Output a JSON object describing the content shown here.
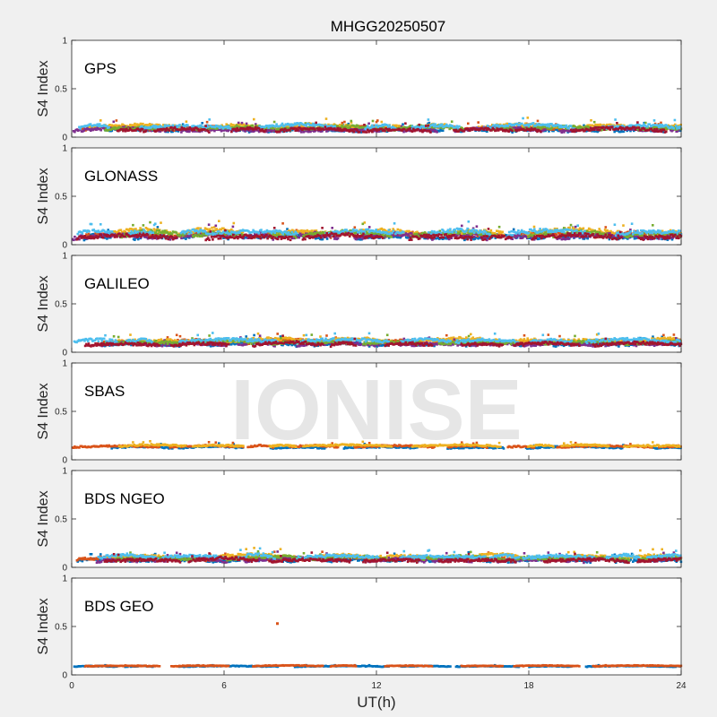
{
  "figure": {
    "title": "MHGG20250507",
    "xlabel": "UT(h)",
    "watermark": "IONISE"
  },
  "colors": {
    "figure_bg": "#f0f0f0",
    "axes_bg": "#ffffff",
    "axis": "#262626",
    "series": [
      "#0072BD",
      "#D95319",
      "#EDB120",
      "#7E2F8E",
      "#77AC30",
      "#4DBEEE",
      "#A2142F"
    ]
  },
  "chart_data": [
    {
      "type": "scatter",
      "panel_label": "GPS",
      "ylabel": "S4 Index",
      "xlim": [
        0,
        24
      ],
      "ylim": [
        0,
        1
      ],
      "xticks": [
        0,
        6,
        12,
        18,
        24
      ],
      "yticks": [
        0,
        0.5,
        1
      ],
      "show_xticklabels": false,
      "series_count": 7,
      "baseline": 0.08,
      "spread": 0.03,
      "peak": 0.2,
      "extra_points": []
    },
    {
      "type": "scatter",
      "panel_label": "GLONASS",
      "ylabel": "S4 Index",
      "xlim": [
        0,
        24
      ],
      "ylim": [
        0,
        1
      ],
      "xticks": [
        0,
        6,
        12,
        18,
        24
      ],
      "yticks": [
        0,
        0.5,
        1
      ],
      "show_xticklabels": false,
      "series_count": 7,
      "baseline": 0.09,
      "spread": 0.04,
      "peak": 0.27,
      "extra_points": []
    },
    {
      "type": "scatter",
      "panel_label": "GALILEO",
      "ylabel": "S4 Index",
      "xlim": [
        0,
        24
      ],
      "ylim": [
        0,
        1
      ],
      "xticks": [
        0,
        6,
        12,
        18,
        24
      ],
      "yticks": [
        0,
        0.5,
        1
      ],
      "show_xticklabels": false,
      "series_count": 7,
      "baseline": 0.09,
      "spread": 0.03,
      "peak": 0.2,
      "extra_points": []
    },
    {
      "type": "scatter",
      "panel_label": "SBAS",
      "ylabel": "S4 Index",
      "xlim": [
        0,
        24
      ],
      "ylim": [
        0,
        1
      ],
      "xticks": [
        0,
        6,
        12,
        18,
        24
      ],
      "yticks": [
        0,
        0.5,
        1
      ],
      "show_xticklabels": false,
      "series_count": 3,
      "baseline": 0.13,
      "spread": 0.015,
      "peak": 0.24,
      "extra_points": []
    },
    {
      "type": "scatter",
      "panel_label": "BDS NGEO",
      "ylabel": "S4 Index",
      "xlim": [
        0,
        24
      ],
      "ylim": [
        0,
        1
      ],
      "xticks": [
        0,
        6,
        12,
        18,
        24
      ],
      "yticks": [
        0,
        0.5,
        1
      ],
      "show_xticklabels": false,
      "series_count": 7,
      "baseline": 0.08,
      "spread": 0.03,
      "peak": 0.2,
      "extra_points": []
    },
    {
      "type": "scatter",
      "panel_label": "BDS GEO",
      "ylabel": "S4 Index",
      "xlim": [
        0,
        24
      ],
      "ylim": [
        0,
        1
      ],
      "xticks": [
        0,
        6,
        12,
        18,
        24
      ],
      "yticks": [
        0,
        0.5,
        1
      ],
      "show_xticklabels": true,
      "series_count": 2,
      "baseline": 0.09,
      "spread": 0.008,
      "peak": 0.1,
      "extra_points": [
        {
          "x": 8.1,
          "y": 0.53
        }
      ]
    }
  ]
}
